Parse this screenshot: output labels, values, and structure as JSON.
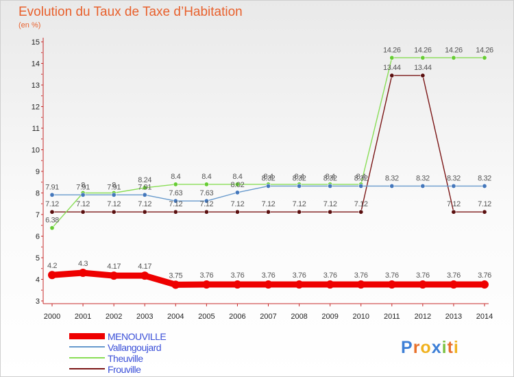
{
  "header": {
    "title": "Evolution du Taux de Taxe d’Habitation",
    "subtitle": "(en %)"
  },
  "legend": {
    "items": [
      {
        "label": "MENOUVILLE",
        "color": "#ee0000"
      },
      {
        "label": "Vallangoujard",
        "color": "#6699cc"
      },
      {
        "label": "Theuville",
        "color": "#88dd55"
      },
      {
        "label": "Frouville",
        "color": "#7a1515"
      }
    ]
  },
  "logo": {
    "letters": [
      "P",
      "r",
      "o",
      "x",
      "i",
      "t",
      "i"
    ],
    "colors": [
      "#3d7fd6",
      "#e8702a",
      "#f0b21f",
      "#3d7fd6",
      "#7ac142",
      "#e8702a",
      "#f0b21f"
    ]
  },
  "chart_data": {
    "type": "line",
    "x": [
      2000,
      2001,
      2002,
      2003,
      2004,
      2005,
      2006,
      2007,
      2008,
      2009,
      2010,
      2011,
      2012,
      2013,
      2014
    ],
    "ylim": [
      3,
      15
    ],
    "yticks": [
      3,
      4,
      5,
      6,
      7,
      8,
      9,
      10,
      11,
      12,
      13,
      14,
      15
    ],
    "grid": false,
    "legend_position": "bottom-left",
    "series": [
      {
        "name": "Frouville",
        "color": "#7a1515",
        "marker": "#5a0f0f",
        "values": [
          7.12,
          7.12,
          7.12,
          7.12,
          7.12,
          7.12,
          7.12,
          7.12,
          7.12,
          7.12,
          7.12,
          13.44,
          13.44,
          7.12,
          7.12
        ],
        "labels": [
          "7.12",
          "7.12",
          "7.12",
          "7.12",
          "7.12",
          "7.12",
          "7.12",
          "7.12",
          "7.12",
          "7.12",
          "7.12",
          "13.44",
          "13.44",
          "7.12",
          "7.12"
        ]
      },
      {
        "name": "Theuville",
        "color": "#88dd55",
        "marker": "#66cc33",
        "values": [
          6.38,
          8,
          8,
          8.24,
          8.4,
          8.4,
          8.4,
          8.4,
          8.4,
          8.4,
          8.4,
          14.26,
          14.26,
          14.26,
          14.26
        ],
        "labels": [
          "6.38",
          "8",
          "8",
          "8.24",
          "8.4",
          "8.4",
          "8.4",
          "8.4",
          "8.4",
          "8.4",
          "8.4",
          "14.26",
          "14.26",
          "14.26",
          "14.26"
        ]
      },
      {
        "name": "Vallangoujard",
        "color": "#6699cc",
        "marker": "#4477bb",
        "values": [
          7.91,
          7.91,
          7.91,
          7.91,
          7.63,
          7.63,
          8.02,
          8.32,
          8.32,
          8.32,
          8.32,
          8.32,
          8.32,
          8.32,
          8.32
        ],
        "labels": [
          "7.91",
          "7.91",
          "7.91",
          "7.91",
          "7.63",
          "7.63",
          "8.02",
          "8.32",
          "8.32",
          "8.32",
          "8.32",
          "8.32",
          "8.32",
          "8.32",
          "8.32"
        ]
      },
      {
        "name": "MENOUVILLE",
        "color": "#ee0000",
        "marker": "#ee0000",
        "values": [
          4.2,
          4.3,
          4.17,
          4.17,
          3.75,
          3.76,
          3.76,
          3.76,
          3.76,
          3.76,
          3.76,
          3.76,
          3.76,
          3.76,
          3.76
        ],
        "labels": [
          "4.2",
          "4.3",
          "4.17",
          "4.17",
          "3.75",
          "3.76",
          "3.76",
          "3.76",
          "3.76",
          "3.76",
          "3.76",
          "3.76",
          "3.76",
          "3.76",
          "3.76"
        ]
      }
    ]
  }
}
